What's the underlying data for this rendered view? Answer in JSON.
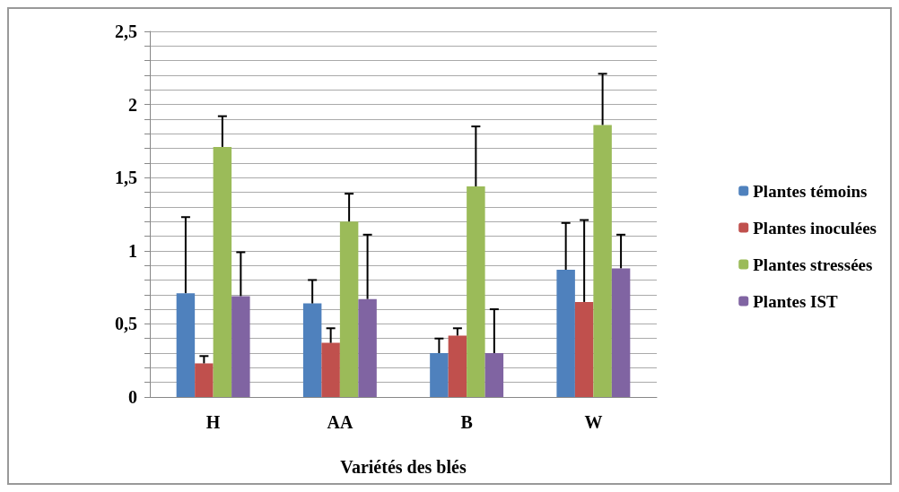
{
  "chart_data": {
    "type": "bar",
    "xlabel": "Variétés des blés",
    "categories": [
      "H",
      "AA",
      "B",
      "W"
    ],
    "series": [
      {
        "name": "Plantes témoins",
        "color": "#4f81bd",
        "values": [
          0.71,
          0.64,
          0.3,
          0.87
        ],
        "errors": [
          [
            0.71,
            1.23
          ],
          [
            0.64,
            0.8
          ],
          [
            0.3,
            0.4
          ],
          [
            0.87,
            1.19
          ]
        ]
      },
      {
        "name": "Plantes inoculées",
        "color": "#c0504d",
        "values": [
          0.23,
          0.37,
          0.42,
          0.65
        ],
        "errors": [
          [
            0.23,
            0.28
          ],
          [
            0.37,
            0.47
          ],
          [
            0.42,
            0.47
          ],
          [
            0.65,
            1.21
          ]
        ]
      },
      {
        "name": "Plantes stressées",
        "color": "#9bbb59",
        "values": [
          1.71,
          1.2,
          1.44,
          1.86
        ],
        "errors": [
          [
            1.71,
            1.92
          ],
          [
            1.2,
            1.39
          ],
          [
            1.44,
            1.85
          ],
          [
            1.86,
            2.21
          ]
        ]
      },
      {
        "name": "Plantes IST",
        "color": "#8064a2",
        "values": [
          0.69,
          0.67,
          0.3,
          0.88
        ],
        "errors": [
          [
            0.69,
            0.99
          ],
          [
            0.67,
            1.11
          ],
          [
            0.3,
            0.6
          ],
          [
            0.88,
            1.11
          ]
        ]
      }
    ],
    "ylim": [
      0,
      2.5
    ],
    "yticks": [
      0,
      {
        "value": 0.1,
        "label": null
      },
      {
        "value": 0.2,
        "label": null
      },
      {
        "value": 0.3,
        "label": null
      },
      {
        "value": 0.4,
        "label": null
      },
      {
        "value": 0.5,
        "label": "0,5"
      },
      {
        "value": 0.6,
        "label": null
      },
      {
        "value": 0.7,
        "label": null
      },
      {
        "value": 0.8,
        "label": null
      },
      {
        "value": 0.9,
        "label": null
      },
      1,
      {
        "value": 1.1,
        "label": null
      },
      {
        "value": 1.2,
        "label": null
      },
      {
        "value": 1.3,
        "label": null
      },
      {
        "value": 1.4,
        "label": null
      },
      {
        "value": 1.5,
        "label": "1,5"
      },
      {
        "value": 1.6,
        "label": null
      },
      {
        "value": 1.7,
        "label": null
      },
      {
        "value": 1.8,
        "label": null
      },
      {
        "value": 1.9,
        "label": null
      },
      2,
      {
        "value": 2.1,
        "label": null
      },
      {
        "value": 2.2,
        "label": null
      },
      {
        "value": 2.3,
        "label": null
      },
      {
        "value": 2.4,
        "label": null
      },
      {
        "value": 2.5,
        "label": "2,5"
      }
    ],
    "grid": true,
    "legend": "right"
  }
}
